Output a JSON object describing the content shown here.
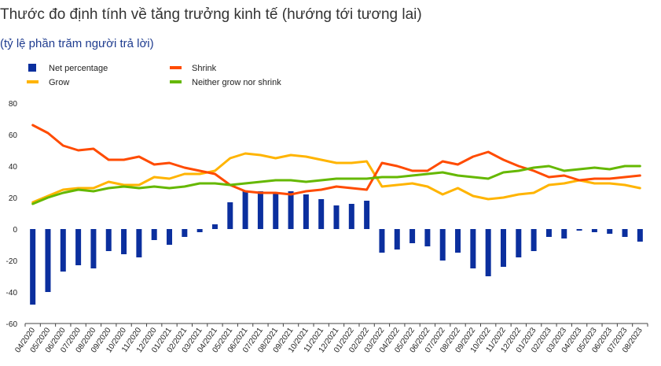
{
  "title": "Thước đo định tính về tăng trưởng kinh tế (hướng tới tương lai)",
  "subtitle": "(tỷ lệ phần trăm người trả lời)",
  "chart_data": {
    "type": "bar+line",
    "title": "Thước đo định tính về tăng trưởng kinh tế (hướng tới tương lai)",
    "subtitle": "(tỷ lệ phần trăm người trả lời)",
    "xlabel": "",
    "ylabel": "",
    "ylim": [
      -60,
      80
    ],
    "yticks": [
      80,
      60,
      40,
      20,
      0,
      -20,
      -40,
      -60
    ],
    "grid": false,
    "legend_position": "top-left",
    "categories": [
      "04/2020",
      "05/2020",
      "06/2020",
      "07/2020",
      "08/2020",
      "09/2020",
      "10/2020",
      "11/2020",
      "12/2020",
      "01/2021",
      "02/2021",
      "03/2021",
      "04/2021",
      "05/2021",
      "06/2021",
      "07/2021",
      "08/2021",
      "09/2021",
      "10/2021",
      "11/2021",
      "12/2021",
      "01/2022",
      "02/2022",
      "03/2022",
      "04/2022",
      "05/2022",
      "06/2022",
      "07/2022",
      "08/2022",
      "09/2022",
      "10/2022",
      "11/2022",
      "12/2022",
      "01/2023",
      "02/2023",
      "03/2023",
      "04/2023",
      "05/2023",
      "06/2023",
      "07/2023",
      "08/2023"
    ],
    "series": [
      {
        "name": "Net percentage",
        "type": "bar",
        "color": "#0b2f9e",
        "values": [
          -48,
          -40,
          -27,
          -23,
          -25,
          -14,
          -16,
          -18,
          -7,
          -10,
          -5,
          -2,
          3,
          17,
          24,
          24,
          23,
          24,
          22,
          19,
          15,
          16,
          18,
          -15,
          -13,
          -9,
          -11,
          -20,
          -15,
          -25,
          -30,
          -24,
          -18,
          -14,
          -5,
          -6,
          -1,
          -2,
          -3,
          -5,
          -8
        ]
      },
      {
        "name": "Grow",
        "type": "line",
        "color": "#ffb400",
        "values": [
          17,
          21,
          25,
          26,
          26,
          30,
          28,
          28,
          33,
          32,
          35,
          35,
          37,
          45,
          48,
          47,
          45,
          47,
          46,
          44,
          42,
          42,
          43,
          27,
          28,
          29,
          27,
          22,
          26,
          21,
          19,
          20,
          22,
          23,
          28,
          29,
          31,
          29,
          29,
          28,
          26
        ]
      },
      {
        "name": "Shrink",
        "type": "line",
        "color": "#ff4b00",
        "values": [
          66,
          61,
          53,
          50,
          51,
          44,
          44,
          46,
          41,
          42,
          39,
          37,
          35,
          28,
          24,
          23,
          23,
          22,
          24,
          25,
          27,
          26,
          25,
          42,
          40,
          37,
          37,
          43,
          41,
          46,
          49,
          44,
          40,
          37,
          33,
          34,
          31,
          32,
          32,
          33,
          34
        ]
      },
      {
        "name": "Neither grow nor shrink",
        "type": "line",
        "color": "#65b800",
        "values": [
          16,
          20,
          23,
          25,
          24,
          26,
          27,
          26,
          27,
          26,
          27,
          29,
          29,
          28,
          29,
          30,
          31,
          31,
          30,
          31,
          32,
          32,
          32,
          33,
          33,
          34,
          35,
          36,
          34,
          33,
          32,
          36,
          37,
          39,
          40,
          37,
          38,
          39,
          38,
          40,
          40
        ]
      }
    ]
  }
}
